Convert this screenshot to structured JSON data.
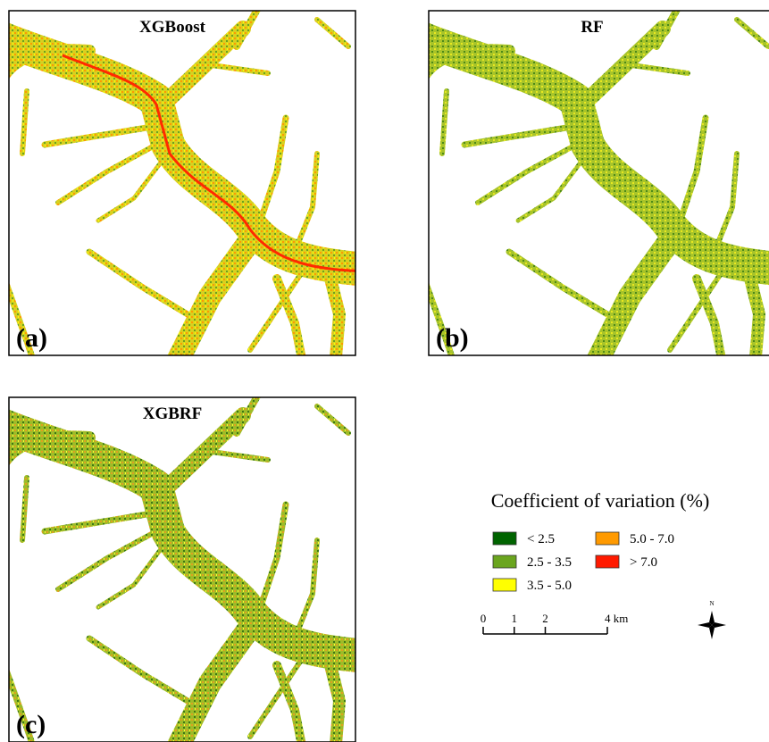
{
  "panels": [
    {
      "title": "XGBoost",
      "label": "(a)"
    },
    {
      "title": "RF",
      "label": "(b)"
    },
    {
      "title": "XGBRF",
      "label": "(c)"
    }
  ],
  "legend": {
    "title": "Coefficient of variation (%)",
    "items": [
      {
        "label": "< 2.5",
        "color": "#006400"
      },
      {
        "label": "2.5 - 3.5",
        "color": "#6aa51e"
      },
      {
        "label": "3.5 - 5.0",
        "color": "#ffff00"
      },
      {
        "label": "5.0 - 7.0",
        "color": "#ff9a00"
      },
      {
        "label": "> 7.0",
        "color": "#ff1a00"
      }
    ]
  },
  "scale_bar": {
    "ticks": [
      {
        "value": 0,
        "label": "0"
      },
      {
        "value": 1,
        "label": "1"
      },
      {
        "value": 2,
        "label": "2"
      },
      {
        "value": 4,
        "label": "4 km"
      }
    ]
  },
  "north": "N"
}
